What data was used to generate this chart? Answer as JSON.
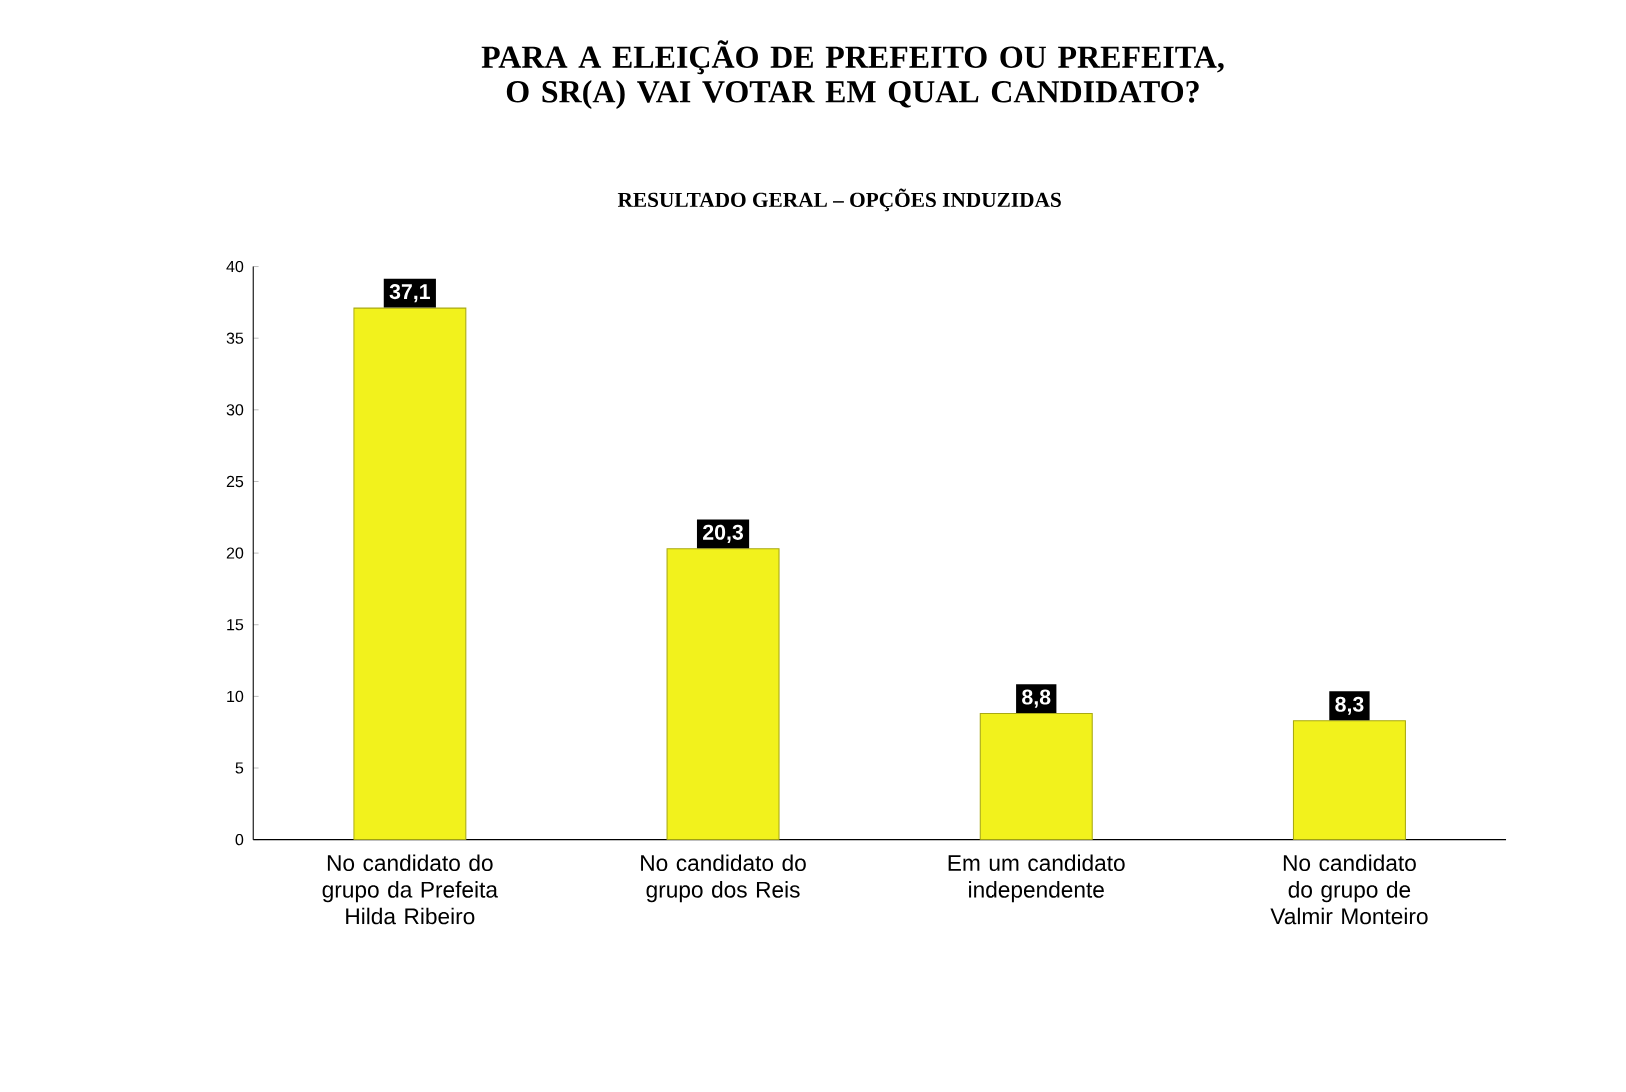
{
  "chart_data": {
    "type": "bar",
    "title": "PARA A ELEIÇÃO DE PREFEITO OU PREFEITA, O SR(A) VAI VOTAR EM QUAL CANDIDATO?",
    "subtitle": "RESULTADO GERAL – OPÇÕES INDUZIDAS",
    "categories": [
      "No candidato do grupo da Prefeita Hilda Ribeiro",
      "No candidato do grupo dos Reis",
      "Em um candidato independente",
      "No candidato do grupo de Valmir Monteiro"
    ],
    "values": [
      37.1,
      20.3,
      8.8,
      8.3
    ],
    "value_labels": [
      "37,1",
      "20,3",
      "8,8",
      "8,3"
    ],
    "color": "#f2f21c",
    "ylim": [
      0,
      40
    ],
    "yticks": [
      0,
      5,
      10,
      15,
      20,
      25,
      30,
      35,
      40
    ]
  }
}
